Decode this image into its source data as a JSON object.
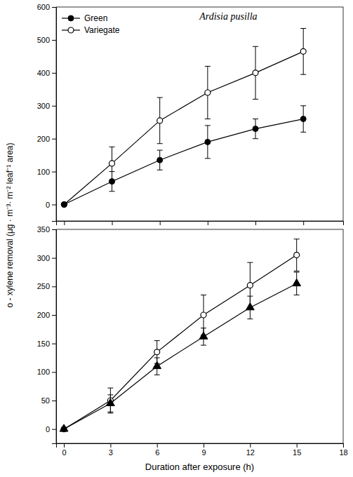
{
  "chart_data": [
    {
      "type": "line",
      "title": "Ardisia pusilla",
      "ylabel": "o - xylene removal (μg · m⁻³· m⁻² leaf⁻¹ area)",
      "x": [
        0,
        3,
        6,
        9,
        12,
        15
      ],
      "xlim": [
        -0.5,
        17.5
      ],
      "xticks": [
        0,
        3,
        6,
        9,
        12,
        15
      ],
      "ylim": [
        -50,
        600
      ],
      "yticks": [
        0,
        100,
        200,
        300,
        400,
        500,
        600
      ],
      "tick_labels": "y",
      "grid": false,
      "legend": "upper left",
      "series": [
        {
          "name": "Green",
          "color": "#000000",
          "marker": "circle",
          "line_style": "solid",
          "values": [
            0,
            70,
            135,
            190,
            230,
            260
          ],
          "errors": [
            0,
            30,
            30,
            50,
            30,
            40
          ]
        },
        {
          "name": "Variegate",
          "color": "#000000",
          "marker": "open-circle",
          "line_style": "solid",
          "values": [
            0,
            125,
            255,
            340,
            400,
            465
          ],
          "errors": [
            0,
            50,
            70,
            80,
            80,
            70
          ]
        }
      ]
    },
    {
      "type": "line",
      "xlabel": "Duration after exposure (h)",
      "x": [
        0,
        3,
        6,
        9,
        12,
        15
      ],
      "xlim": [
        -0.5,
        18
      ],
      "xticks": [
        0,
        3,
        6,
        9,
        12,
        15,
        18
      ],
      "ylim": [
        -25,
        350
      ],
      "yticks": [
        0,
        50,
        100,
        150,
        200,
        250,
        300,
        350
      ],
      "grid": false,
      "series": [
        {
          "color": "#000000",
          "marker": "triangle",
          "line_style": "solid",
          "values": [
            0,
            45,
            110,
            162,
            213,
            255
          ],
          "errors": [
            0,
            15,
            15,
            15,
            20,
            20
          ]
        },
        {
          "color": "#000000",
          "marker": "open-circle",
          "line_style": "solid",
          "values": [
            0,
            50,
            135,
            200,
            252,
            305
          ],
          "errors": [
            0,
            22,
            20,
            35,
            40,
            28
          ]
        }
      ]
    }
  ]
}
